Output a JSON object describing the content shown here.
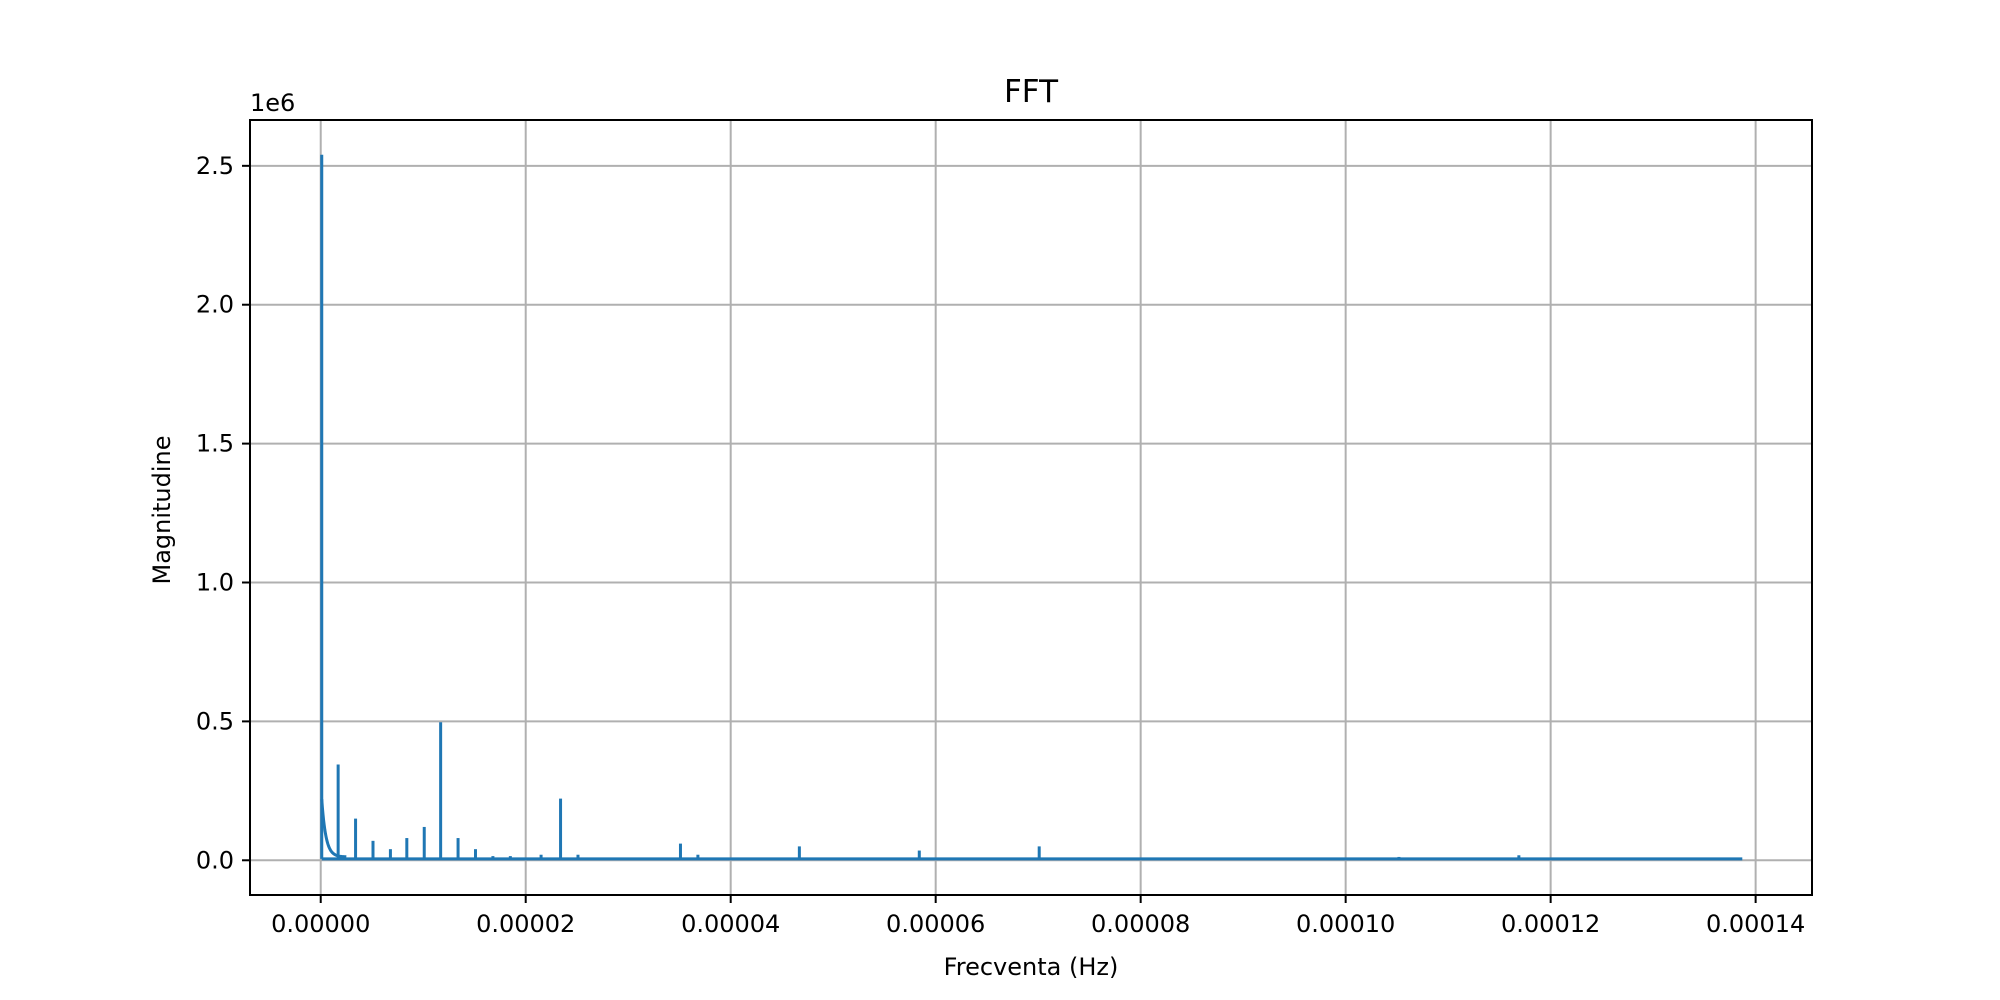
{
  "chart_data": {
    "type": "line",
    "title": "FFT",
    "xlabel": "Frecventa (Hz)",
    "ylabel": "Magnitudine",
    "y_offset_label": "1e6",
    "xlim": [
      -6.9e-06,
      0.0001455
    ],
    "ylim": [
      -125000,
      2665000
    ],
    "x_ticks": [
      0,
      2e-05,
      4e-05,
      6e-05,
      8e-05,
      0.0001,
      0.00012,
      0.00014
    ],
    "x_tick_labels": [
      "0.00000",
      "0.00002",
      "0.00004",
      "0.00006",
      "0.00008",
      "0.00010",
      "0.00012",
      "0.00014"
    ],
    "y_ticks": [
      0,
      500000,
      1000000,
      1500000,
      2000000,
      2500000
    ],
    "y_tick_labels": [
      "0.0",
      "0.5",
      "1.0",
      "1.5",
      "2.0",
      "2.5"
    ],
    "grid": true,
    "series": [
      {
        "color": "#1f77b4",
        "x_max": 0.0001387,
        "baseline": 5000,
        "decay": {
          "start_x": 1e-07,
          "end_x": 2.5e-06,
          "start_y": 220000,
          "end_y": 12000
        },
        "peaks": [
          {
            "x": 1e-07,
            "y": 2540000
          },
          {
            "x": 1.7e-06,
            "y": 345000
          },
          {
            "x": 3.4e-06,
            "y": 150000
          },
          {
            "x": 5.1e-06,
            "y": 70000
          },
          {
            "x": 6.8e-06,
            "y": 40000
          },
          {
            "x": 8.4e-06,
            "y": 80000
          },
          {
            "x": 1.01e-05,
            "y": 120000
          },
          {
            "x": 1.17e-05,
            "y": 497000
          },
          {
            "x": 1.34e-05,
            "y": 80000
          },
          {
            "x": 1.51e-05,
            "y": 40000
          },
          {
            "x": 1.68e-05,
            "y": 15000
          },
          {
            "x": 1.85e-05,
            "y": 15000
          },
          {
            "x": 2.15e-05,
            "y": 20000
          },
          {
            "x": 2.34e-05,
            "y": 222000
          },
          {
            "x": 2.51e-05,
            "y": 20000
          },
          {
            "x": 3.51e-05,
            "y": 60000
          },
          {
            "x": 3.68e-05,
            "y": 20000
          },
          {
            "x": 4.67e-05,
            "y": 50000
          },
          {
            "x": 5.84e-05,
            "y": 35000
          },
          {
            "x": 7.01e-05,
            "y": 50000
          },
          {
            "x": 0.0001052,
            "y": 12000
          },
          {
            "x": 0.0001169,
            "y": 18000
          }
        ]
      }
    ]
  }
}
